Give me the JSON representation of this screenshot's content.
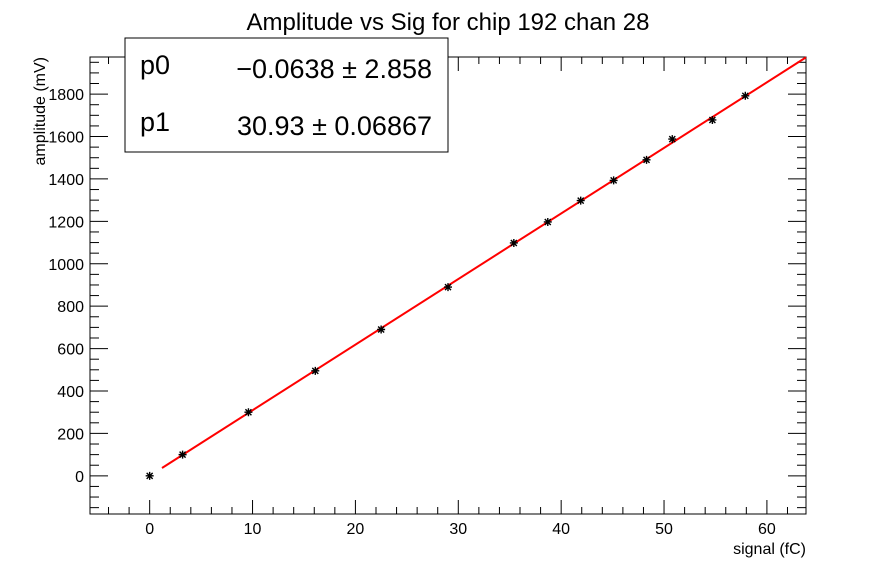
{
  "chart_data": {
    "type": "scatter",
    "title": "Amplitude vs Sig for chip 192 chan 28",
    "xlabel": "signal (fC)",
    "ylabel": "amplitude (mV)",
    "xlim": [
      -5.8,
      63.8
    ],
    "ylim": [
      -180,
      1975
    ],
    "x_ticks": [
      0,
      10,
      20,
      30,
      40,
      50,
      60
    ],
    "y_ticks": [
      0,
      200,
      400,
      600,
      800,
      1000,
      1200,
      1400,
      1600,
      1800
    ],
    "grid": false,
    "points": [
      {
        "x": 0,
        "y": 0
      },
      {
        "x": 3.2,
        "y": 100
      },
      {
        "x": 9.6,
        "y": 300
      },
      {
        "x": 16.1,
        "y": 495
      },
      {
        "x": 22.5,
        "y": 690
      },
      {
        "x": 29.0,
        "y": 890
      },
      {
        "x": 35.4,
        "y": 1098
      },
      {
        "x": 38.7,
        "y": 1197
      },
      {
        "x": 41.9,
        "y": 1298
      },
      {
        "x": 45.1,
        "y": 1393
      },
      {
        "x": 48.3,
        "y": 1490
      },
      {
        "x": 50.8,
        "y": 1588
      },
      {
        "x": 54.7,
        "y": 1678
      },
      {
        "x": 57.9,
        "y": 1792
      }
    ],
    "fit": {
      "color": "#ff0000",
      "x_range": [
        1.2,
        63.8
      ],
      "p0": -0.0638,
      "p1": 30.93
    },
    "stats": [
      {
        "name": "p0",
        "value": "−0.0638",
        "error": "2.858"
      },
      {
        "name": "p1",
        "value": "30.93",
        "error": "0.06867"
      }
    ],
    "stats_placement": "top-left"
  }
}
